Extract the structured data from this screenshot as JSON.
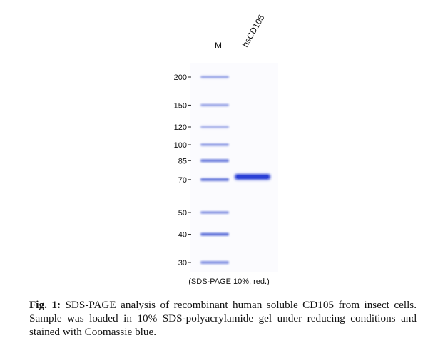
{
  "gel": {
    "lane_labels": [
      "M",
      "hsCD105"
    ],
    "mw_markers": [
      "200",
      "150",
      "120",
      "100",
      "85",
      "70",
      "50",
      "40",
      "30"
    ],
    "marker_kda": [
      200,
      150,
      120,
      100,
      85,
      70,
      50,
      40,
      30
    ],
    "sample_band_kda": 72,
    "note": "(SDS-PAGE 10%, red.)",
    "band_color": "#2a3fd6",
    "marker_color": "#5b6ed8"
  },
  "caption": {
    "label": "Fig. 1:",
    "text": " SDS-PAGE analysis of recombinant human soluble CD105 from insect cells. Sample was loaded in 10% SDS-polyacrylamide gel under reducing  conditions and stained with Coomassie blue."
  }
}
